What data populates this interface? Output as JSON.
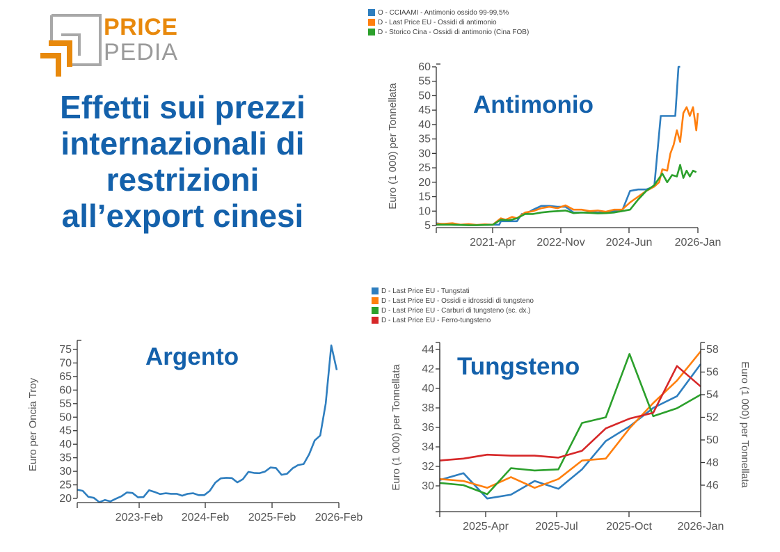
{
  "brand": {
    "price": "PRICE",
    "pedia": "PEDIA",
    "orange": "#e8890c",
    "gray": "#9a9a9a"
  },
  "title": {
    "lines": [
      "Effetti sui prezzi",
      "internazionali di",
      "restrizioni",
      "all’export cinesi"
    ],
    "color": "#1461ab"
  },
  "chart_data": [
    {
      "id": "antimonio",
      "type": "line",
      "title": "Antimonio",
      "ylabel": "Euro (1 000) per Tonnellata",
      "xlabel": "",
      "ylim": [
        5,
        60
      ],
      "yticks": [
        5,
        10,
        15,
        20,
        25,
        30,
        35,
        40,
        45,
        50,
        55,
        60
      ],
      "xticks": [
        "2021-Apr",
        "2022-Nov",
        "2024-Jun",
        "2026-Jan"
      ],
      "legend_position": "top",
      "series": [
        {
          "name": "O - CCIAAMI - Antimonio ossido 99-99,5%",
          "color": "#2e7ebf",
          "x": [
            0,
            0.5,
            1,
            1.5,
            2,
            2.5,
            3,
            3.5,
            3.9,
            4.0,
            4.5,
            5.0,
            5.3,
            5.5,
            6.0,
            6.5,
            7.0,
            7.5,
            8.0,
            8.5,
            9.0,
            9.5,
            10.0,
            10.5,
            11.0,
            11.3,
            11.5,
            12.0,
            12.5,
            13.0,
            13.5,
            13.9,
            14.1,
            14.8,
            15.0,
            15.1
          ],
          "values": [
            5.8,
            5.4,
            5.3,
            5.2,
            5.2,
            5.2,
            5.2,
            5.3,
            5.3,
            6.5,
            6.5,
            6.5,
            9.0,
            9.0,
            10.5,
            11.8,
            11.8,
            11.5,
            11.5,
            9.5,
            9.5,
            9.5,
            9.5,
            9.5,
            10.0,
            10.0,
            10.0,
            17.0,
            17.5,
            17.5,
            18.5,
            43.0,
            43.0,
            43.0,
            60.0,
            60.0
          ]
        },
        {
          "name": "D - Last Price EU - Ossidi di antimonio",
          "color": "#ff7f0e",
          "x": [
            0,
            0.5,
            1,
            1.5,
            2,
            2.5,
            3,
            3.5,
            4.0,
            4.3,
            4.7,
            5.0,
            5.5,
            6.0,
            6.5,
            7.0,
            7.5,
            8.0,
            8.5,
            9.0,
            9.5,
            10.0,
            10.5,
            11.0,
            11.5,
            12.0,
            12.5,
            13.0,
            13.5,
            13.8,
            14.0,
            14.3,
            14.5,
            14.7,
            14.9,
            15.1,
            15.3,
            15.5,
            15.7,
            15.9,
            16.1,
            16.2
          ],
          "values": [
            5.6,
            5.6,
            5.8,
            5.3,
            5.5,
            5.2,
            5.4,
            5.3,
            7.5,
            7.0,
            8.0,
            7.5,
            9.5,
            10.0,
            11.0,
            11.5,
            11.0,
            12.0,
            10.5,
            10.5,
            10.0,
            10.2,
            9.8,
            10.5,
            10.5,
            13.0,
            15.0,
            17.0,
            18.5,
            20.0,
            24.5,
            24.0,
            30.0,
            33.0,
            38.0,
            34.0,
            44.0,
            46.0,
            43.0,
            46.0,
            38.0,
            44.0
          ]
        },
        {
          "name": "D - Storico Cina - Ossidi di antimonio (Cina FOB)",
          "color": "#2ca02c",
          "x": [
            0,
            0.5,
            1,
            1.5,
            2,
            2.5,
            3,
            3.5,
            4.0,
            4.5,
            5.0,
            5.5,
            6.0,
            6.5,
            7.0,
            7.5,
            8.0,
            8.5,
            9.0,
            9.5,
            10.0,
            10.5,
            11.0,
            11.5,
            12.0,
            12.5,
            13.0,
            13.5,
            14.0,
            14.3,
            14.6,
            14.9,
            15.1,
            15.3,
            15.5,
            15.7,
            15.9,
            16.1
          ],
          "values": [
            5.3,
            5.3,
            5.3,
            5.2,
            5.1,
            5.1,
            5.2,
            5.3,
            7.0,
            6.8,
            7.5,
            9.0,
            9.0,
            9.5,
            9.8,
            10.0,
            10.2,
            9.3,
            9.5,
            9.4,
            9.2,
            9.3,
            9.5,
            10.0,
            10.5,
            14.0,
            17.0,
            19.0,
            23.0,
            20.0,
            22.5,
            22.0,
            26.0,
            21.5,
            24.0,
            22.0,
            24.0,
            23.5
          ]
        }
      ]
    },
    {
      "id": "argento",
      "type": "line",
      "title": "Argento",
      "ylabel": "Euro per Oncia Troy",
      "xlabel": "",
      "ylim": [
        20,
        75
      ],
      "yticks": [
        20,
        25,
        30,
        35,
        40,
        45,
        50,
        55,
        60,
        65,
        70,
        75
      ],
      "xticks": [
        "2023-Feb",
        "2024-Feb",
        "2025-Feb",
        "2026-Feb"
      ],
      "series": [
        {
          "name": "Argento",
          "color": "#2e7ebf",
          "values": [
            23.2,
            22.8,
            20.6,
            20.2,
            18.6,
            19.4,
            18.9,
            19.9,
            20.8,
            22.2,
            22.0,
            20.4,
            20.5,
            23.0,
            22.4,
            21.6,
            21.9,
            21.7,
            21.7,
            21.0,
            21.7,
            21.9,
            21.2,
            21.2,
            22.8,
            25.8,
            27.4,
            27.6,
            27.5,
            25.9,
            27.1,
            29.8,
            29.4,
            29.3,
            29.9,
            31.4,
            31.2,
            28.7,
            29.1,
            31.1,
            32.3,
            32.7,
            36.3,
            41.4,
            43.2,
            55.0,
            76.5,
            67.4
          ]
        }
      ]
    },
    {
      "id": "tungsteno",
      "type": "line",
      "title": "Tungsteno",
      "ylabel": "Euro (1 000) per Tonnellata",
      "y2label": "Euro (1 000) per Tonnellata",
      "xlabel": "",
      "ylim": [
        28,
        44.5
      ],
      "y2lim": [
        43.3,
        58.5
      ],
      "yticks": [
        30,
        32,
        34,
        36,
        38,
        40,
        42,
        44
      ],
      "y2ticks": [
        46,
        48,
        50,
        52,
        54,
        56,
        58
      ],
      "xticks": [
        "2025-Apr",
        "2025-Jul",
        "2025-Oct",
        "2026-Jan"
      ],
      "series": [
        {
          "name": "D - Last Price EU - Tungstati",
          "color": "#2e7ebf",
          "axis": "left",
          "values": [
            30.6,
            31.3,
            28.7,
            29.1,
            30.5,
            29.7,
            31.7,
            34.6,
            36.1,
            38.0,
            39.2,
            42.5
          ]
        },
        {
          "name": "D - Last Price EU - Ossidi e idrossidi di tungsteno",
          "color": "#ff7f0e",
          "axis": "left",
          "values": [
            30.7,
            30.5,
            29.8,
            30.9,
            29.8,
            30.7,
            32.6,
            32.8,
            35.9,
            38.5,
            40.8,
            43.8
          ]
        },
        {
          "name": "D - Last Price EU - Carburi di tungsteno (sc. dx.)",
          "color": "#2ca02c",
          "axis": "right",
          "values": [
            46.2,
            46.0,
            45.2,
            47.5,
            47.3,
            47.4,
            51.5,
            52.0,
            57.6,
            52.1,
            52.8,
            54.0
          ]
        },
        {
          "name": "D - Last Price EU - Ferro-tungsteno",
          "color": "#d62728",
          "axis": "left",
          "values": [
            32.6,
            32.8,
            33.2,
            33.1,
            33.1,
            32.9,
            33.6,
            35.9,
            36.9,
            37.5,
            42.3,
            40.2
          ]
        }
      ]
    }
  ]
}
